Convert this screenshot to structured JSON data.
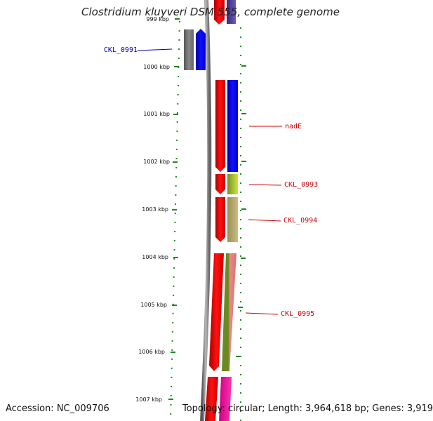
{
  "title": "Clostridium kluyveri DSM 555, complete genome",
  "footer": {
    "accession": "Accession: NC_009706",
    "summary": "Topology: circular; Length: 3,964,618 bp; Genes: 3,919"
  },
  "ruler": {
    "ticks": [
      "999 kbp",
      "1000 kbp",
      "1001 kbp",
      "1002 kbp",
      "1003 kbp",
      "1004 kbp",
      "1005 kbp",
      "1006 kbp",
      "1007 kbp"
    ]
  },
  "genes": [
    {
      "id": "CKL_0991",
      "label": "CKL_0991",
      "color": "#0000aa"
    },
    {
      "id": "nadE",
      "label": "nadE",
      "color": "#cc0000"
    },
    {
      "id": "CKL_0993",
      "label": "CKL_0993",
      "color": "#cc0000"
    },
    {
      "id": "CKL_0994",
      "label": "CKL_0994",
      "color": "#cc0000"
    },
    {
      "id": "CKL_0995",
      "label": "CKL_0995",
      "color": "#cc0000"
    }
  ],
  "colors": {
    "ruler_green": "#1a8c1a",
    "backbone_gray": "#888888",
    "cds_red": "#ff0000",
    "cds_blue": "#0000ff",
    "cds_gray": "#777777"
  }
}
